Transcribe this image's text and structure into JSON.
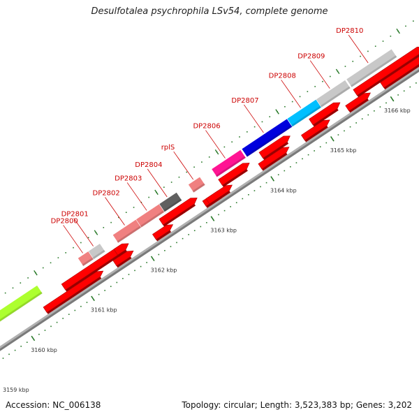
{
  "title": "Desulfotalea psychrophila LSv54, complete genome",
  "footer": {
    "accession_label": "Accession:",
    "accession": "NC_006138",
    "topology_label": "Topology:",
    "topology": "circular",
    "length_label": "Length:",
    "length": "3,523,383 bp",
    "genes_label": "Genes:",
    "genes": "3,202"
  },
  "colors": {
    "backbone": "#b0b0b0",
    "forward_gene": "#ff0000",
    "gene_label": "#cc0000",
    "tick": "#2a7a2a"
  },
  "ticks": [
    {
      "label": "3159 kbp"
    },
    {
      "label": "3160 kbp"
    },
    {
      "label": "3161 kbp"
    },
    {
      "label": "3162 kbp"
    },
    {
      "label": "3163 kbp"
    },
    {
      "label": "3164 kbp"
    },
    {
      "label": "3165 kbp"
    },
    {
      "label": "3166 kbp"
    }
  ],
  "genes": [
    {
      "name": "DP2800",
      "color": "#f08080"
    },
    {
      "name": "DP2801",
      "color": "#c8c8c8"
    },
    {
      "name": "DP2802",
      "color": "#f08080"
    },
    {
      "name": "DP2803",
      "color": "#f08080"
    },
    {
      "name": "DP2804",
      "color": "#606060"
    },
    {
      "name": "rplS",
      "color": "#f08080"
    },
    {
      "name": "DP2806",
      "color": "#ff1493"
    },
    {
      "name": "DP2807",
      "color": "#0000dd"
    },
    {
      "name": "DP2808",
      "color": "#00bfff"
    },
    {
      "name": "DP2809",
      "color": "#c8c8c8"
    },
    {
      "name": "DP2810",
      "color": "#c8c8c8"
    },
    {
      "name": "",
      "color": "#adff2f"
    }
  ]
}
